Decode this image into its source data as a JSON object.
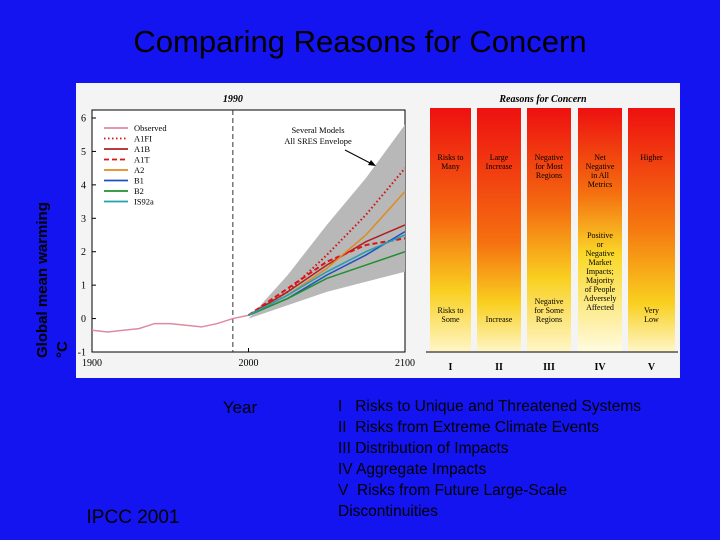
{
  "title": "Comparing Reasons for Concern",
  "y_axis_label": [
    "Global mean warming",
    "°C"
  ],
  "x_axis_label": "Year",
  "source": "IPCC 2001",
  "notes": [
    "I   Risks to Unique and Threatened Systems",
    "II  Risks from Extreme Climate Events",
    "III Distribution of Impacts",
    "IV Aggregate Impacts",
    "V  Risks from Future Large-Scale",
    "Discontinuities"
  ],
  "chart_data": {
    "type": "line",
    "annotations": [
      "1990",
      "Several Models",
      "All SRES Envelope"
    ],
    "xlim": [
      1900,
      2100
    ],
    "ylim": [
      -1,
      6
    ],
    "xticks": [
      1900,
      2000,
      2100
    ],
    "yticks": [
      -1,
      0,
      1,
      2,
      3,
      4,
      5,
      6
    ],
    "marker_x": 1990,
    "envelope": {
      "x": [
        2000,
        2025,
        2050,
        2075,
        2100
      ],
      "lower": [
        0,
        0.4,
        0.8,
        1.1,
        1.4
      ],
      "upper": [
        0,
        1.3,
        2.8,
        4.2,
        5.8
      ],
      "color": "#b8b8b8"
    },
    "series": [
      {
        "name": "Observed",
        "color": "#e08aa0",
        "dash": "solid",
        "x": [
          1900,
          1910,
          1920,
          1930,
          1940,
          1950,
          1960,
          1970,
          1980,
          1990,
          2000
        ],
        "values": [
          -0.35,
          -0.4,
          -0.35,
          -0.3,
          -0.15,
          -0.15,
          -0.2,
          -0.25,
          -0.15,
          0,
          0.1
        ]
      },
      {
        "name": "A1FI",
        "color": "#d01010",
        "dash": "dotted",
        "x": [
          2000,
          2025,
          2050,
          2075,
          2100
        ],
        "values": [
          0.1,
          0.8,
          1.9,
          3.1,
          4.5
        ]
      },
      {
        "name": "A1B",
        "color": "#b02020",
        "dash": "solid",
        "x": [
          2000,
          2025,
          2050,
          2075,
          2100
        ],
        "values": [
          0.1,
          0.8,
          1.6,
          2.3,
          2.8
        ]
      },
      {
        "name": "A1T",
        "color": "#e01010",
        "dash": "dashed",
        "x": [
          2000,
          2025,
          2050,
          2075,
          2100
        ],
        "values": [
          0.1,
          0.9,
          1.7,
          2.2,
          2.4
        ]
      },
      {
        "name": "A2",
        "color": "#e08a20",
        "dash": "solid",
        "x": [
          2000,
          2025,
          2050,
          2075,
          2100
        ],
        "values": [
          0.1,
          0.7,
          1.5,
          2.5,
          3.8
        ]
      },
      {
        "name": "B1",
        "color": "#2050c0",
        "dash": "solid",
        "x": [
          2000,
          2025,
          2050,
          2075,
          2100
        ],
        "values": [
          0.1,
          0.6,
          1.3,
          1.9,
          2.6
        ]
      },
      {
        "name": "B2",
        "color": "#209030",
        "dash": "solid",
        "x": [
          2000,
          2025,
          2050,
          2075,
          2100
        ],
        "values": [
          0.1,
          0.6,
          1.2,
          1.6,
          2.0
        ]
      },
      {
        "name": "IS92a",
        "color": "#20a0b0",
        "dash": "solid",
        "x": [
          2000,
          2025,
          2050,
          2075,
          2100
        ],
        "values": [
          0.1,
          0.7,
          1.4,
          2.0,
          2.5
        ]
      }
    ]
  },
  "concern_panel": {
    "title": "Reasons for Concern",
    "columns": [
      {
        "numeral": "I",
        "top": [
          "Risks to",
          "Many"
        ],
        "bottom": [
          "Risks to",
          "Some"
        ]
      },
      {
        "numeral": "II",
        "top": [
          "Large",
          "Increase"
        ],
        "bottom": [
          "Increase"
        ]
      },
      {
        "numeral": "III",
        "top": [
          "Negative",
          "for Most",
          "Regions"
        ],
        "bottom": [
          "Negative",
          "for Some",
          "Regions"
        ]
      },
      {
        "numeral": "IV",
        "top": [
          "Net",
          "Negative",
          "in All",
          "Metrics"
        ],
        "bottom": [
          "Positive",
          "or",
          "Negative",
          "Market",
          "Impacts;",
          "Majority",
          "of People",
          "Adversely",
          "Affected"
        ]
      },
      {
        "numeral": "V",
        "top": [
          "Higher"
        ],
        "bottom": [
          "Very",
          "Low"
        ]
      }
    ]
  }
}
